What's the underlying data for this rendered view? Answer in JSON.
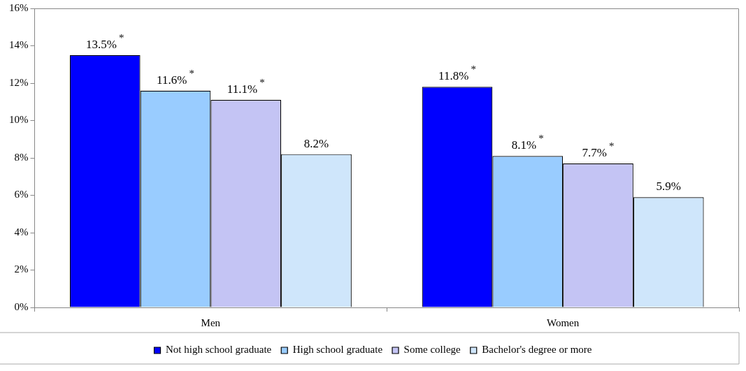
{
  "chart_data": {
    "type": "bar",
    "categories": [
      "Men",
      "Women"
    ],
    "series": [
      {
        "name": "Not high school graduate",
        "color": "#0000ff",
        "values": [
          13.5,
          11.8
        ],
        "value_labels": [
          "13.5%$^{*}$",
          "11.8%$^{*}$"
        ]
      },
      {
        "name": "High school graduate",
        "color": "#99ccff",
        "values": [
          11.6,
          8.1
        ],
        "value_labels": [
          "11.6%$^{*}$",
          "8.1%$^{*}$"
        ]
      },
      {
        "name": "Some college",
        "color": "#c4c4f4",
        "values": [
          11.1,
          7.7
        ],
        "value_labels": [
          "11.1%$^{*}$",
          "7.7%$^{*}$"
        ]
      },
      {
        "name": "Bachelor's degree or more",
        "color": "#cfe6fb",
        "values": [
          8.2,
          5.9
        ],
        "value_labels": [
          "8.2%",
          "5.9%"
        ]
      }
    ],
    "ylim": [
      0,
      16
    ],
    "yticks": [
      {
        "value": 0,
        "label": "0%"
      },
      {
        "value": 2,
        "label": "2%"
      },
      {
        "value": 4,
        "label": "4%"
      },
      {
        "value": 6,
        "label": "6%"
      },
      {
        "value": 8,
        "label": "8%"
      },
      {
        "value": 10,
        "label": "10%"
      },
      {
        "value": 12,
        "label": "12%"
      },
      {
        "value": 14,
        "label": "14%"
      },
      {
        "value": 16,
        "label": "16%"
      }
    ],
    "grid": false,
    "legend": "bottom"
  }
}
